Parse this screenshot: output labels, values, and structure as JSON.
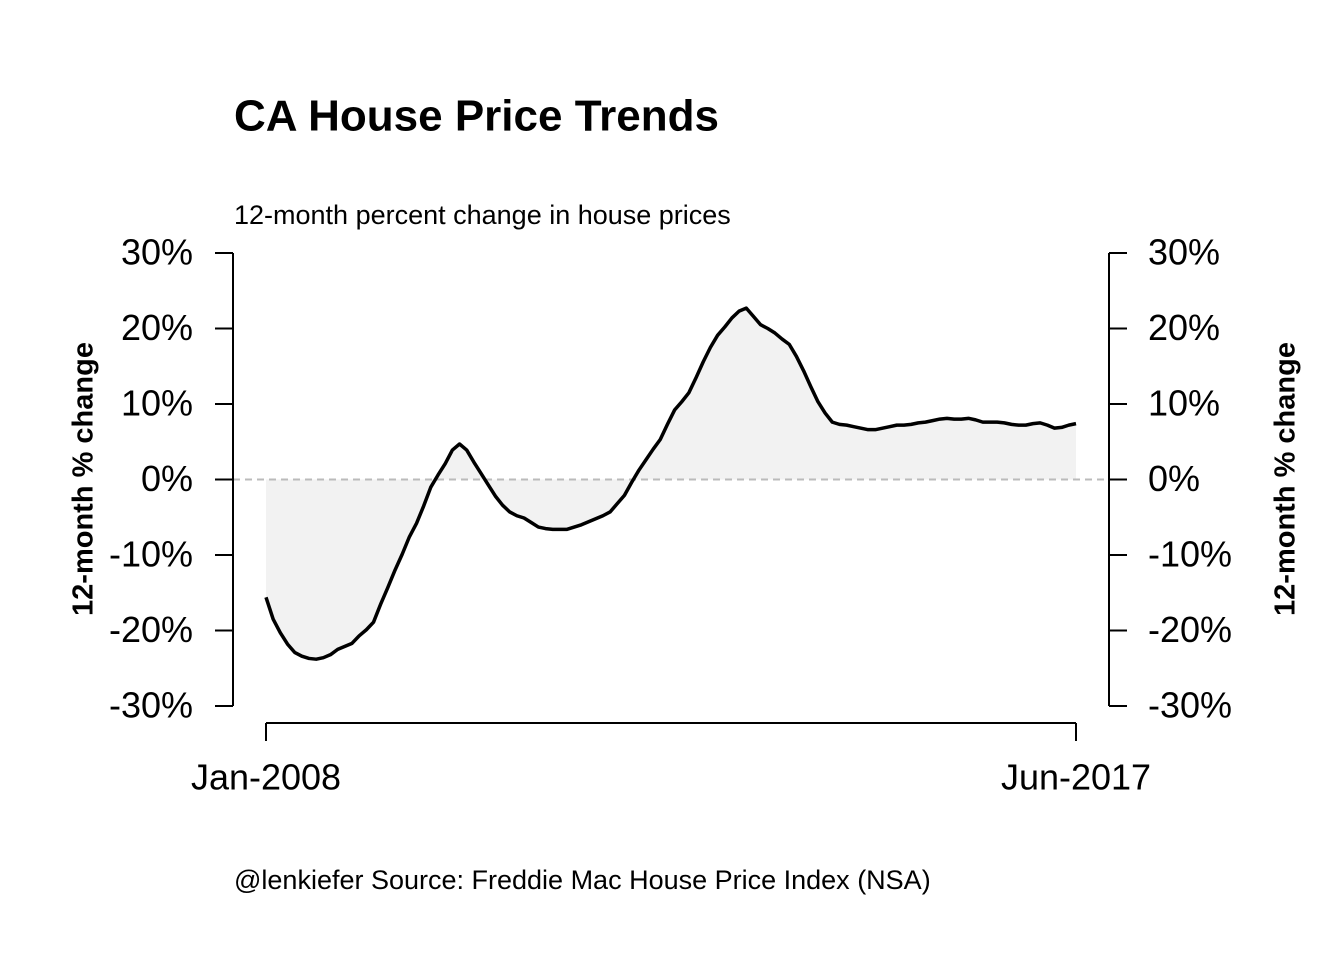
{
  "chart_data": {
    "type": "area_line",
    "title": "CA House Price Trends",
    "subtitle": "12-month percent change in house prices",
    "y_label": "12-month % change",
    "source": "@lenkiefer Source: Freddie Mac House Price Index (NSA)",
    "categories": [
      "Jan-2008",
      null,
      null,
      null,
      null,
      null,
      null,
      null,
      null,
      null,
      null,
      null,
      null,
      null,
      null,
      null,
      null,
      null,
      null,
      null,
      null,
      null,
      null,
      null,
      null,
      null,
      null,
      null,
      null,
      null,
      null,
      null,
      null,
      null,
      null,
      null,
      null,
      null,
      null,
      null,
      null,
      null,
      null,
      null,
      null,
      null,
      null,
      null,
      null,
      null,
      null,
      null,
      null,
      null,
      null,
      null,
      null,
      null,
      null,
      null,
      null,
      null,
      null,
      null,
      null,
      null,
      null,
      null,
      null,
      null,
      null,
      null,
      null,
      null,
      null,
      null,
      null,
      null,
      null,
      null,
      null,
      null,
      null,
      null,
      null,
      null,
      null,
      null,
      null,
      null,
      null,
      null,
      null,
      null,
      null,
      null,
      null,
      null,
      null,
      null,
      null,
      null,
      null,
      null,
      null,
      null,
      null,
      null,
      null,
      null,
      null,
      null,
      null,
      "Jun-2017"
    ],
    "values": [
      -15.6,
      -18.5,
      -20.3,
      -21.8,
      -22.9,
      -23.4,
      -23.7,
      -23.8,
      -23.6,
      -23.2,
      -22.5,
      -22.1,
      -21.7,
      -20.7,
      -19.9,
      -18.9,
      -16.5,
      -14.3,
      -12,
      -9.9,
      -7.6,
      -5.8,
      -3.5,
      -1,
      0.6,
      2.1,
      3.9,
      4.7,
      3.9,
      2.3,
      0.8,
      -0.7,
      -2.2,
      -3.4,
      -4.3,
      -4.8,
      -5.1,
      -5.7,
      -6.3,
      -6.5,
      -6.6,
      -6.6,
      -6.6,
      -6.3,
      -6,
      -5.6,
      -5.2,
      -4.8,
      -4.3,
      -3.2,
      -2.1,
      -0.4,
      1.2,
      2.6,
      4,
      5.3,
      7.3,
      9.2,
      10.3,
      11.5,
      13.5,
      15.6,
      17.5,
      19.1,
      20.2,
      21.4,
      22.3,
      22.7,
      21.6,
      20.5,
      20,
      19.4,
      18.6,
      17.9,
      16.3,
      14.4,
      12.3,
      10.3,
      8.8,
      7.6,
      7.3,
      7.2,
      7,
      6.8,
      6.6,
      6.6,
      6.8,
      7,
      7.2,
      7.2,
      7.3,
      7.5,
      7.6,
      7.8,
      8,
      8.1,
      8,
      8,
      8.1,
      7.9,
      7.6,
      7.6,
      7.6,
      7.5,
      7.3,
      7.2,
      7.2,
      7.4,
      7.5,
      7.2,
      6.8,
      6.9,
      7.2,
      7.4
    ],
    "color": "#000000",
    "fill": "#f2f2f2",
    "ylim": [
      -30,
      30
    ],
    "yticks": [
      {
        "value": -30,
        "label": "-30%"
      },
      {
        "value": -20,
        "label": "-20%"
      },
      {
        "value": -10,
        "label": "-10%"
      },
      {
        "value": 0,
        "label": "0%"
      },
      {
        "value": 10,
        "label": "10%"
      },
      {
        "value": 20,
        "label": "20%"
      },
      {
        "value": 30,
        "label": "30%"
      }
    ],
    "hline": 0
  }
}
